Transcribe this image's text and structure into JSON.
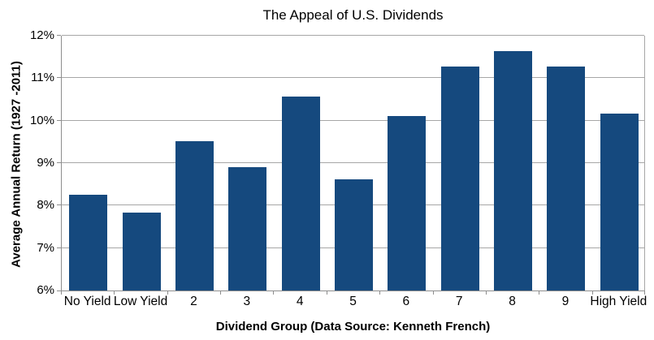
{
  "chart_data": {
    "type": "bar",
    "title": "The Appeal of U.S. Dividends",
    "xlabel": "Dividend Group (Data Source: Kenneth French)",
    "ylabel": "Average Annual Return (1927 -2011)",
    "categories": [
      "No Yield",
      "Low Yield",
      "2",
      "3",
      "4",
      "5",
      "6",
      "7",
      "8",
      "9",
      "High Yield"
    ],
    "values": [
      8.25,
      7.84,
      9.51,
      8.91,
      10.57,
      8.62,
      10.11,
      11.28,
      11.63,
      11.27,
      10.16
    ],
    "ylim": [
      6,
      12
    ],
    "ytick_step": 1,
    "ytick_labels": [
      "6%",
      "7%",
      "8%",
      "9%",
      "10%",
      "11%",
      "12%"
    ],
    "grid": true,
    "legend": false,
    "bar_color": "#15497E",
    "gridline_color": "#A6A6A6",
    "axis_color": "#8E8E8E",
    "text_color": "#000000",
    "background_color": "#FFFFFF"
  }
}
